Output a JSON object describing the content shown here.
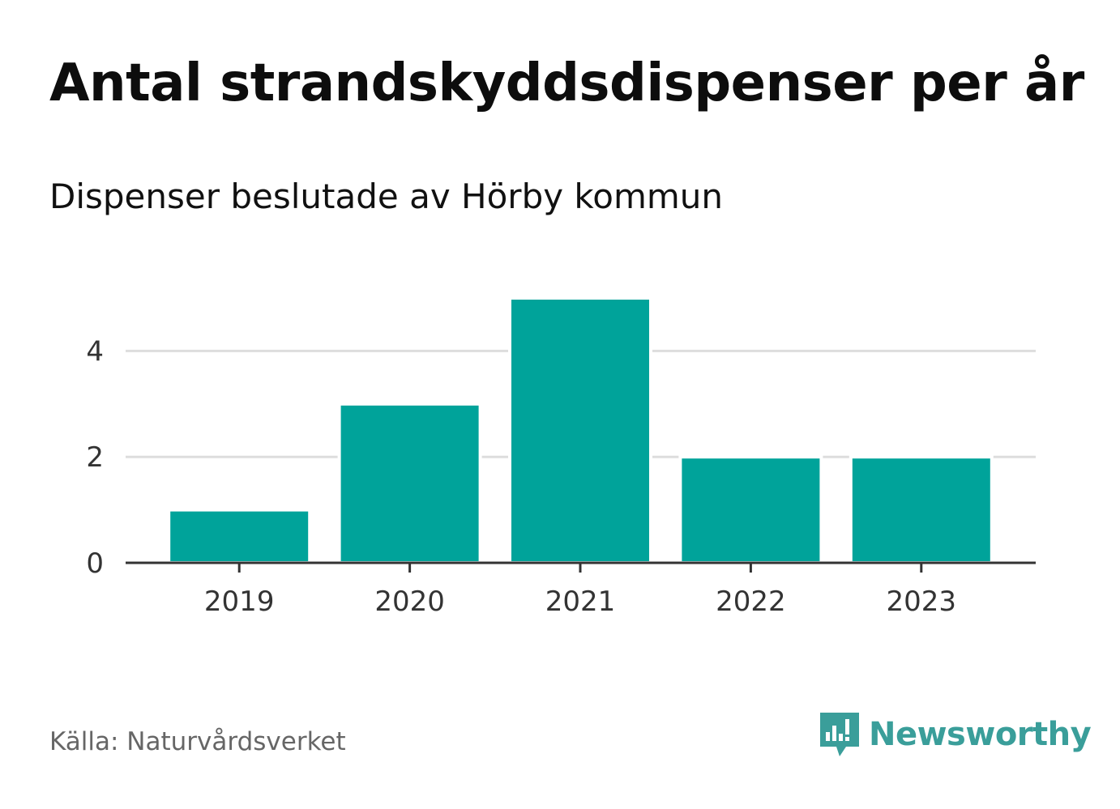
{
  "header": {
    "title": "Antal strandskyddsdispenser per år",
    "subtitle": "Dispenser beslutade av Hörby kommun"
  },
  "footer": {
    "source": "Källa: Naturvårdsverket",
    "brand": "Newsworthy",
    "brand_icon": "newsworthy-logo-icon"
  },
  "colors": {
    "bar": "#00a39a",
    "grid": "#dddddd",
    "axis": "#333333",
    "brand": "#3a9e9a"
  },
  "chart_data": {
    "type": "bar",
    "categories": [
      "2019",
      "2020",
      "2021",
      "2022",
      "2023"
    ],
    "values": [
      1,
      3,
      5,
      2,
      2
    ],
    "title": "Antal strandskyddsdispenser per år",
    "subtitle": "Dispenser beslutade av Hörby kommun",
    "xlabel": "",
    "ylabel": "",
    "ylim": [
      0,
      5
    ],
    "yticks": [
      0,
      2,
      4
    ],
    "grid": true,
    "legend": "none"
  }
}
